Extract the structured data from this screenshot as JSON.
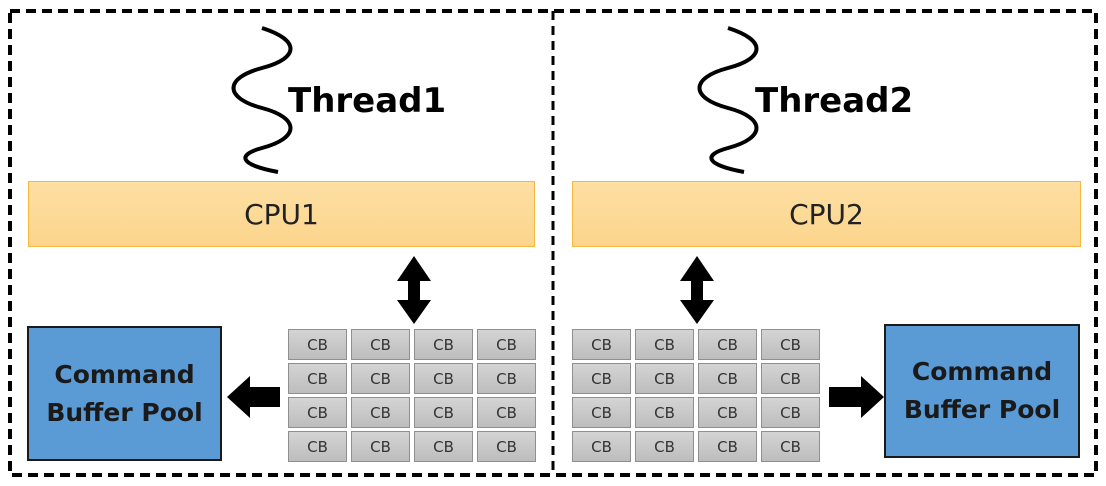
{
  "threads": [
    {
      "label": "Thread1"
    },
    {
      "label": "Thread2"
    }
  ],
  "cpus": [
    {
      "label": "CPU1"
    },
    {
      "label": "CPU2"
    }
  ],
  "pools": [
    {
      "line1": "Command",
      "line2": "Buffer Pool"
    },
    {
      "line1": "Command",
      "line2": "Buffer Pool"
    }
  ],
  "cb_label": "CB",
  "cb_rows": 4,
  "cb_cols": 4,
  "colors": {
    "cpu_fill": "#fdd997",
    "cpu_border": "#f4b942",
    "pool_fill": "#5b9bd5",
    "cb_fill": "#c8c8c8",
    "arrow": "#000000"
  }
}
